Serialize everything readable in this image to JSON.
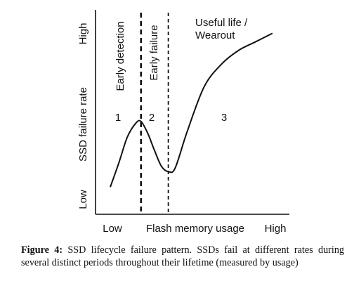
{
  "chart_data": {
    "type": "line",
    "ylabel": "SSD failure rate",
    "xlabel": "Flash memory usage",
    "x_ticks": {
      "low": "Low",
      "high": "High"
    },
    "y_ticks": {
      "low": "Low",
      "high": "High"
    },
    "x_range": [
      0,
      100
    ],
    "y_range": [
      0,
      100
    ],
    "grid": false,
    "legend": "none",
    "series": [
      {
        "x": [
          0,
          5,
          10,
          15,
          18,
          22,
          26,
          30,
          34,
          38,
          45,
          55,
          65,
          75,
          85,
          95
        ],
        "values": [
          8,
          22,
          37,
          45,
          46,
          39,
          29,
          20,
          17,
          19,
          40,
          66,
          79,
          87,
          92,
          97
        ]
      }
    ],
    "phase_boundaries": [
      18,
      34
    ],
    "phases": [
      {
        "number": "1",
        "label": "Early detection"
      },
      {
        "number": "2",
        "label": "Early failure"
      },
      {
        "number": "3",
        "label_lines": [
          "Useful life /",
          "Wearout"
        ]
      }
    ]
  },
  "caption": {
    "label": "Figure 4:",
    "text": "SSD lifecycle failure pattern. SSDs fail at different rates during several distinct periods throughout their lifetime (measured by usage)"
  }
}
